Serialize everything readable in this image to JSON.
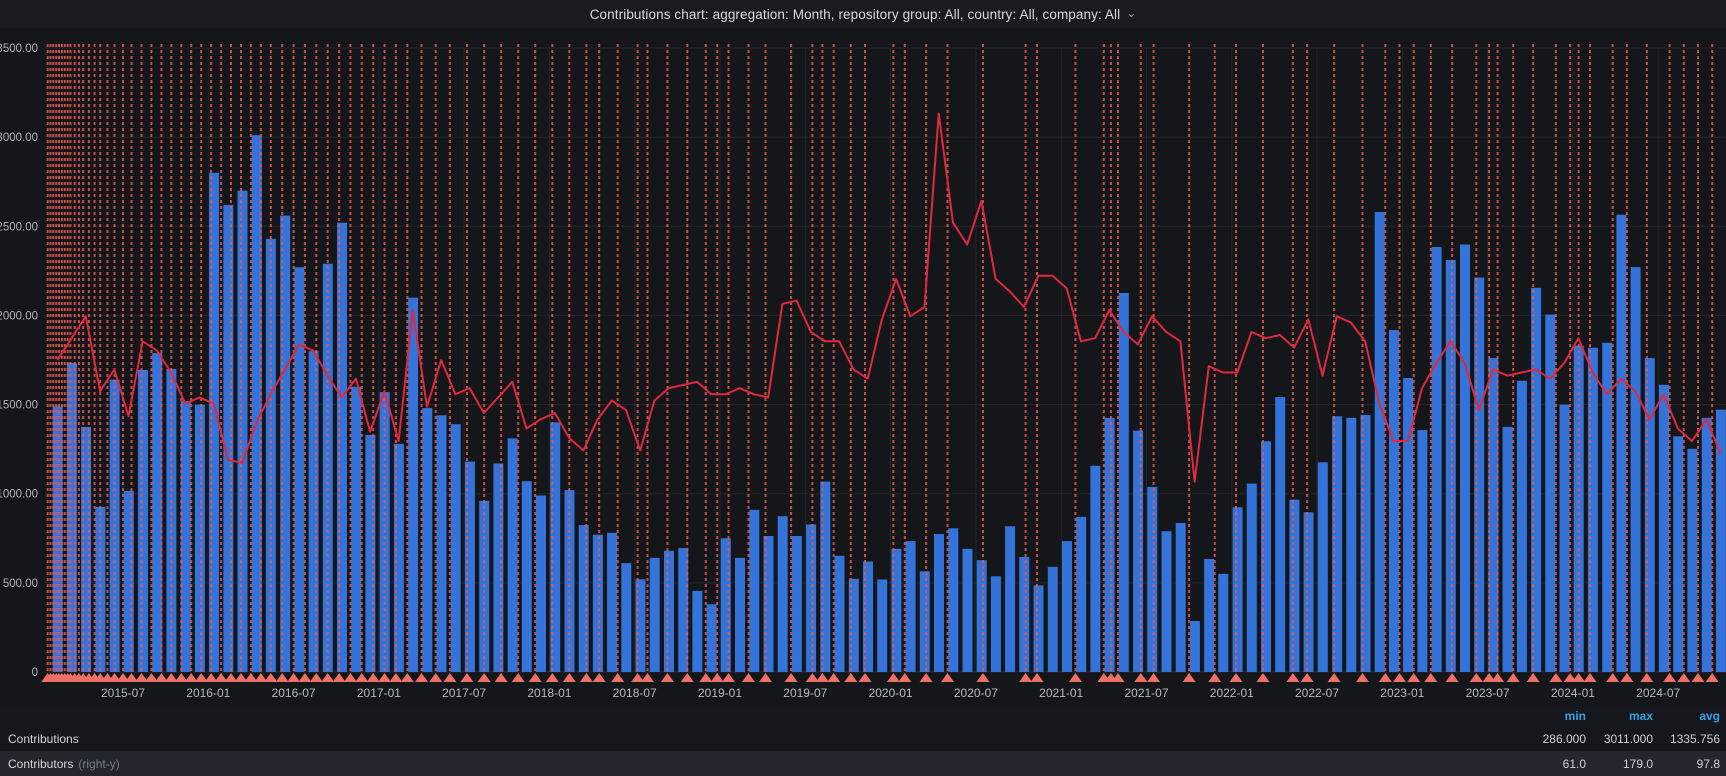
{
  "header": {
    "title": "Contributions chart: aggregation: Month, repository group: All, country: All, company: All",
    "chevron": "⌄"
  },
  "chart_data": {
    "type": "bar",
    "title": "Contributions chart",
    "start_month": "2015-02",
    "end_month": "2024-11",
    "x_tick_labels": [
      "2015-07",
      "2016-01",
      "2016-07",
      "2017-01",
      "2017-07",
      "2018-01",
      "2018-07",
      "2019-01",
      "2019-07",
      "2020-01",
      "2020-07",
      "2021-01",
      "2021-07",
      "2022-01",
      "2022-07",
      "2023-01",
      "2023-07",
      "2024-01",
      "2024-07"
    ],
    "y_axis_left": {
      "min": 0,
      "max": 3500,
      "labels": [
        "3500.00",
        "3000.00",
        "2500.00",
        "2000.00",
        "1500.00",
        "1000.00",
        "500.00",
        "0"
      ]
    },
    "y_axis_right": {
      "min": 0,
      "max": 200,
      "labels_visible": false
    },
    "series": [
      {
        "name": "Contributions",
        "type": "bar",
        "axis": "left",
        "color": "#3473d9",
        "values": [
          1490,
          1733,
          1375,
          926,
          1640,
          1016,
          1694,
          1789,
          1700,
          1520,
          1500,
          2800,
          2620,
          2700,
          3011,
          2430,
          2560,
          2270,
          1800,
          2290,
          2520,
          1600,
          1330,
          1570,
          1280,
          2100,
          1480,
          1440,
          1390,
          1180,
          960,
          1170,
          1310,
          1070,
          990,
          1400,
          1020,
          824,
          770,
          780,
          610,
          520,
          640,
          680,
          695,
          455,
          380,
          750,
          640,
          910,
          763,
          874,
          763,
          828,
          1068,
          652,
          523,
          620,
          519,
          691,
          734,
          565,
          774,
          806,
          691,
          627,
          537,
          817,
          645,
          486,
          590,
          734,
          870,
          1157,
          1426,
          2126,
          1354,
          1038,
          790,
          836,
          286,
          634,
          550,
          924,
          1057,
          1294,
          1542,
          967,
          896,
          1176,
          1434,
          1426,
          1442,
          2580,
          1918,
          1649,
          1357,
          2384,
          2311,
          2398,
          2213,
          1761,
          1375,
          1634,
          2155,
          2005,
          1500,
          1831,
          1819,
          1847,
          2565,
          2271,
          1761,
          1611,
          1322,
          1252,
          1426,
          1472
        ]
      },
      {
        "name": "Contributors",
        "type": "line",
        "axis": "right",
        "color": "#e0283f",
        "values": [
          100,
          107,
          114,
          90,
          97,
          82,
          106,
          103,
          96,
          86,
          88,
          86,
          68,
          67,
          80,
          89,
          97,
          105,
          103,
          95,
          88,
          94,
          77,
          90,
          74,
          116,
          85,
          100,
          89,
          91,
          83,
          88,
          93,
          78,
          81,
          83,
          75,
          71,
          81,
          87,
          84,
          71,
          87,
          91,
          92,
          93,
          89,
          89,
          91,
          89,
          88,
          118,
          119,
          109,
          106,
          106,
          97,
          94,
          113,
          126,
          114,
          117,
          179,
          144,
          137,
          151,
          126,
          122,
          117,
          127,
          127,
          123,
          106,
          107,
          116,
          109,
          105,
          114,
          109,
          106,
          61,
          98,
          96,
          96,
          109,
          107,
          108,
          104,
          113,
          95,
          114,
          112,
          106,
          86,
          74,
          74,
          91,
          99,
          106,
          99,
          84,
          97,
          95,
          96,
          97,
          94,
          99,
          107,
          96,
          89,
          94,
          90,
          81,
          89,
          78,
          74,
          81,
          70
        ]
      }
    ],
    "annotations": {
      "line_color": "#e85a52",
      "marker_color": "#ee7168",
      "month_offsets": [
        0.7,
        0.9,
        1.1,
        1.3,
        1.5,
        1.7,
        1.9,
        2.1,
        2.3,
        2.6,
        2.9,
        3.2,
        3.6,
        4.0,
        4.4,
        4.9,
        5.4,
        6.0,
        6.6,
        7.3,
        8.0,
        8.7,
        9.4,
        10.1,
        10.8,
        11.5,
        12.2,
        12.9,
        13.6,
        14.3,
        15.0,
        15.7,
        16.4,
        17.2,
        18.0,
        18.8,
        19.6,
        20.4,
        21.2,
        22.0,
        22.8,
        23.6,
        24.4,
        25.2,
        26.0,
        27.0,
        28.0,
        29.0,
        30.2,
        31.4,
        32.6,
        33.8,
        35.0,
        36.2,
        37.4,
        38.6,
        39.5,
        40.8,
        42.2,
        42.9,
        44.3,
        45.7,
        47.0,
        47.8,
        48.6,
        50.0,
        51.2,
        53.0,
        54.5,
        55.2,
        56.0,
        57.2,
        58.2,
        60.2,
        61.0,
        62.5,
        64.0,
        66.5,
        69.5,
        70.3,
        73.0,
        75.0,
        75.5,
        76.0,
        77.6,
        78.5,
        81.0,
        82.8,
        84.3,
        86.2,
        88.3,
        89.3,
        91.2,
        93.2,
        94.8,
        95.8,
        96.8,
        98.0,
        99.5,
        101.2,
        102.1,
        102.7,
        103.8,
        105.2,
        106.8,
        107.8,
        108.4,
        109.2,
        110.8,
        111.8,
        113.2,
        114.8,
        115.8,
        116.8,
        117.8
      ]
    },
    "legend": {
      "columns": [
        "min",
        "max",
        "avg"
      ],
      "rows": [
        {
          "label": "Contributions",
          "axis_note": "",
          "min": "286.000",
          "max": "3011.000",
          "avg": "1335.756"
        },
        {
          "label": "Contributors",
          "axis_note": "(right-y)",
          "min": "61.0",
          "max": "179.0",
          "avg": "97.8"
        }
      ]
    },
    "layout": {
      "grid": true,
      "accent_header_color": "#33a2e5",
      "background": "#141619"
    }
  }
}
